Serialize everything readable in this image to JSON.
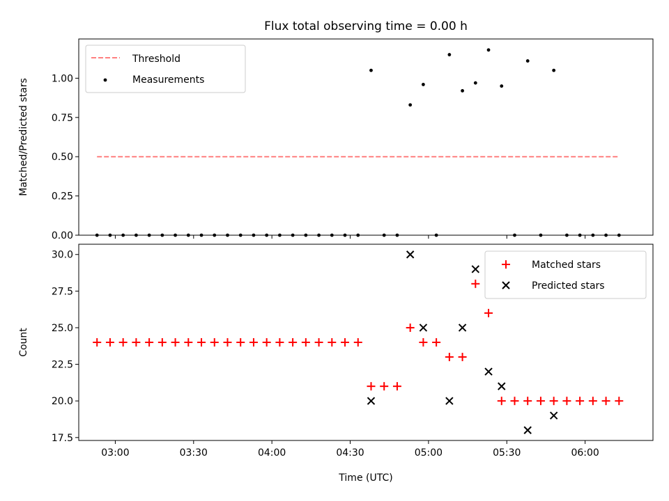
{
  "chart_data": [
    {
      "type": "scatter",
      "title": "Flux total observing time = 0.00 h",
      "xlabel": "",
      "ylabel": "Matched/Predicted stars",
      "x_unit": "time (UTC)",
      "xlim": [
        "02:46",
        "06:26"
      ],
      "ylim": [
        0,
        1.25
      ],
      "yticks": [
        "0.00",
        "0.25",
        "0.50",
        "0.75",
        "1.00"
      ],
      "xticks": [
        "03:00",
        "03:30",
        "04:00",
        "04:30",
        "05:00",
        "05:30",
        "06:00"
      ],
      "show_xticklabels": false,
      "legend_loc": "upper left",
      "grid": false,
      "series": [
        {
          "name": "Threshold",
          "kind": "line",
          "style": "dashed",
          "color": "#ff7f7f",
          "x": [
            "02:53",
            "06:13"
          ],
          "y": [
            0.5,
            0.5
          ]
        },
        {
          "name": "Measurements",
          "kind": "scatter",
          "marker": "dot",
          "color": "#000000",
          "x": [
            "02:53",
            "02:58",
            "03:03",
            "03:08",
            "03:13",
            "03:18",
            "03:23",
            "03:28",
            "03:33",
            "03:38",
            "03:43",
            "03:48",
            "03:53",
            "03:58",
            "04:03",
            "04:08",
            "04:13",
            "04:18",
            "04:23",
            "04:28",
            "04:33",
            "04:38",
            "04:43",
            "04:48",
            "04:53",
            "04:58",
            "05:03",
            "05:08",
            "05:13",
            "05:18",
            "05:23",
            "05:28",
            "05:33",
            "05:38",
            "05:43",
            "05:48",
            "05:53",
            "05:58",
            "06:03",
            "06:08",
            "06:13"
          ],
          "y": [
            0,
            0,
            0,
            0,
            0,
            0,
            0,
            0,
            0,
            0,
            0,
            0,
            0,
            0,
            0,
            0,
            0,
            0,
            0,
            0,
            0,
            1.05,
            0,
            0,
            0.83,
            0.96,
            0,
            1.15,
            0.92,
            0.97,
            1.18,
            0.95,
            0,
            1.11,
            0,
            1.05,
            0,
            0,
            0,
            0,
            0
          ]
        }
      ]
    },
    {
      "type": "scatter",
      "title": "",
      "xlabel": "Time (UTC)",
      "ylabel": "Count",
      "x_unit": "time (UTC)",
      "xlim": [
        "02:46",
        "06:26"
      ],
      "ylim": [
        17.3,
        30.7
      ],
      "yticks": [
        "17.5",
        "20.0",
        "22.5",
        "25.0",
        "27.5",
        "30.0"
      ],
      "xticks": [
        "03:00",
        "03:30",
        "04:00",
        "04:30",
        "05:00",
        "05:30",
        "06:00"
      ],
      "show_xticklabels": true,
      "legend_loc": "upper right",
      "grid": false,
      "series": [
        {
          "name": "Matched stars",
          "kind": "scatter",
          "marker": "plus",
          "color": "#ff0000",
          "x": [
            "02:53",
            "02:58",
            "03:03",
            "03:08",
            "03:13",
            "03:18",
            "03:23",
            "03:28",
            "03:33",
            "03:38",
            "03:43",
            "03:48",
            "03:53",
            "03:58",
            "04:03",
            "04:08",
            "04:13",
            "04:18",
            "04:23",
            "04:28",
            "04:33",
            "04:38",
            "04:43",
            "04:48",
            "04:53",
            "04:58",
            "05:03",
            "05:08",
            "05:13",
            "05:18",
            "05:23",
            "05:28",
            "05:33",
            "05:38",
            "05:43",
            "05:48",
            "05:53",
            "05:58",
            "06:03",
            "06:08",
            "06:13"
          ],
          "y": [
            24,
            24,
            24,
            24,
            24,
            24,
            24,
            24,
            24,
            24,
            24,
            24,
            24,
            24,
            24,
            24,
            24,
            24,
            24,
            24,
            24,
            21,
            21,
            21,
            25,
            24,
            24,
            23,
            23,
            28,
            26,
            20,
            20,
            20,
            20,
            20,
            20,
            20,
            20,
            20,
            20
          ]
        },
        {
          "name": "Predicted stars",
          "kind": "scatter",
          "marker": "x",
          "color": "#000000",
          "x": [
            "04:38",
            "04:53",
            "04:58",
            "05:08",
            "05:13",
            "05:18",
            "05:23",
            "05:28",
            "05:38",
            "05:48"
          ],
          "y": [
            20,
            30,
            25,
            20,
            25,
            29,
            22,
            21,
            18,
            19
          ]
        }
      ]
    }
  ]
}
